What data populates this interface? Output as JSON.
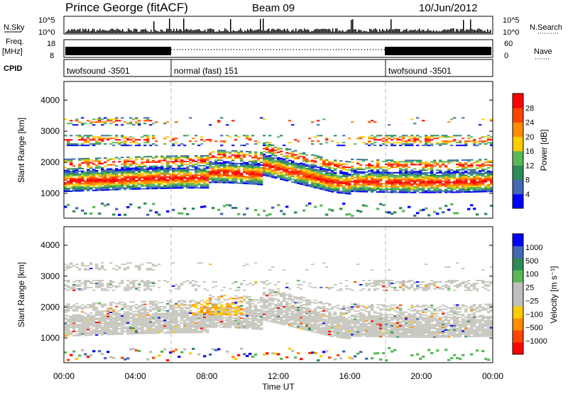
{
  "header": {
    "station": "Prince George (fitACF)",
    "beam": "Beam 09",
    "date": "10/Jun/2012"
  },
  "side_labels": {
    "nsky": "N.Sky",
    "nsearch": "N.Search",
    "freq": "Freq.",
    "freq_unit": "[MHz]",
    "nave": "Nave",
    "cpid": "CPID"
  },
  "noise_panel": {
    "left_ticks": [
      "10^5",
      "10^0"
    ],
    "right_ticks": [
      "10^5",
      "10^0"
    ]
  },
  "freq_panel": {
    "left_ticks": [
      "18",
      "8"
    ],
    "right_ticks": [
      "60",
      "0"
    ]
  },
  "cpid_segments": [
    {
      "label": "twofsound -3501",
      "start": 0,
      "end": 6
    },
    {
      "label": "normal (fast) 151",
      "start": 6,
      "end": 18
    },
    {
      "label": "twofsound -3501",
      "start": 18,
      "end": 24
    }
  ],
  "colors": {
    "power": [
      "#0000ff",
      "#4169b4",
      "#2e8b57",
      "#58b858",
      "#ffcc00",
      "#ff8c00",
      "#ff4500",
      "#ff0000"
    ],
    "velocity": [
      "#ff0000",
      "#ff4500",
      "#ff8c00",
      "#ffcc00",
      "#bebebe",
      "#bebebe",
      "#58b858",
      "#2e8b57",
      "#4169b4",
      "#0000ff"
    ],
    "grey": "#c8c8c0"
  },
  "chart_data": [
    {
      "type": "heatmap",
      "name": "power",
      "ylabel": "Slant Range [km]",
      "ylim": [
        200,
        4600
      ],
      "xlim": [
        0,
        24
      ],
      "y_ticks": [
        "1000",
        "2000",
        "3000",
        "4000"
      ],
      "colorbar_label": "Power [dB]",
      "colorbar_ticks": [
        "28",
        "24",
        "20",
        "16",
        "12",
        "8",
        "4"
      ],
      "colorbar_range": [
        0,
        32
      ]
    },
    {
      "type": "heatmap",
      "name": "velocity",
      "ylabel": "Slant Range [km]",
      "ylim": [
        200,
        4600
      ],
      "xlim": [
        0,
        24
      ],
      "y_ticks": [
        "1000",
        "2000",
        "3000",
        "4000"
      ],
      "colorbar_label": "Velocity [m s⁻¹]",
      "colorbar_ticks": [
        "1000",
        "500",
        "100",
        "25",
        "−25",
        "−100",
        "−500",
        "−1000"
      ]
    }
  ],
  "x_axis": {
    "label": "Time UT",
    "ticks": [
      "00:00",
      "04:00",
      "08:00",
      "12:00",
      "16:00",
      "20:00",
      "00:00"
    ],
    "tick_hours": [
      0,
      4,
      8,
      12,
      16,
      20,
      24
    ]
  }
}
